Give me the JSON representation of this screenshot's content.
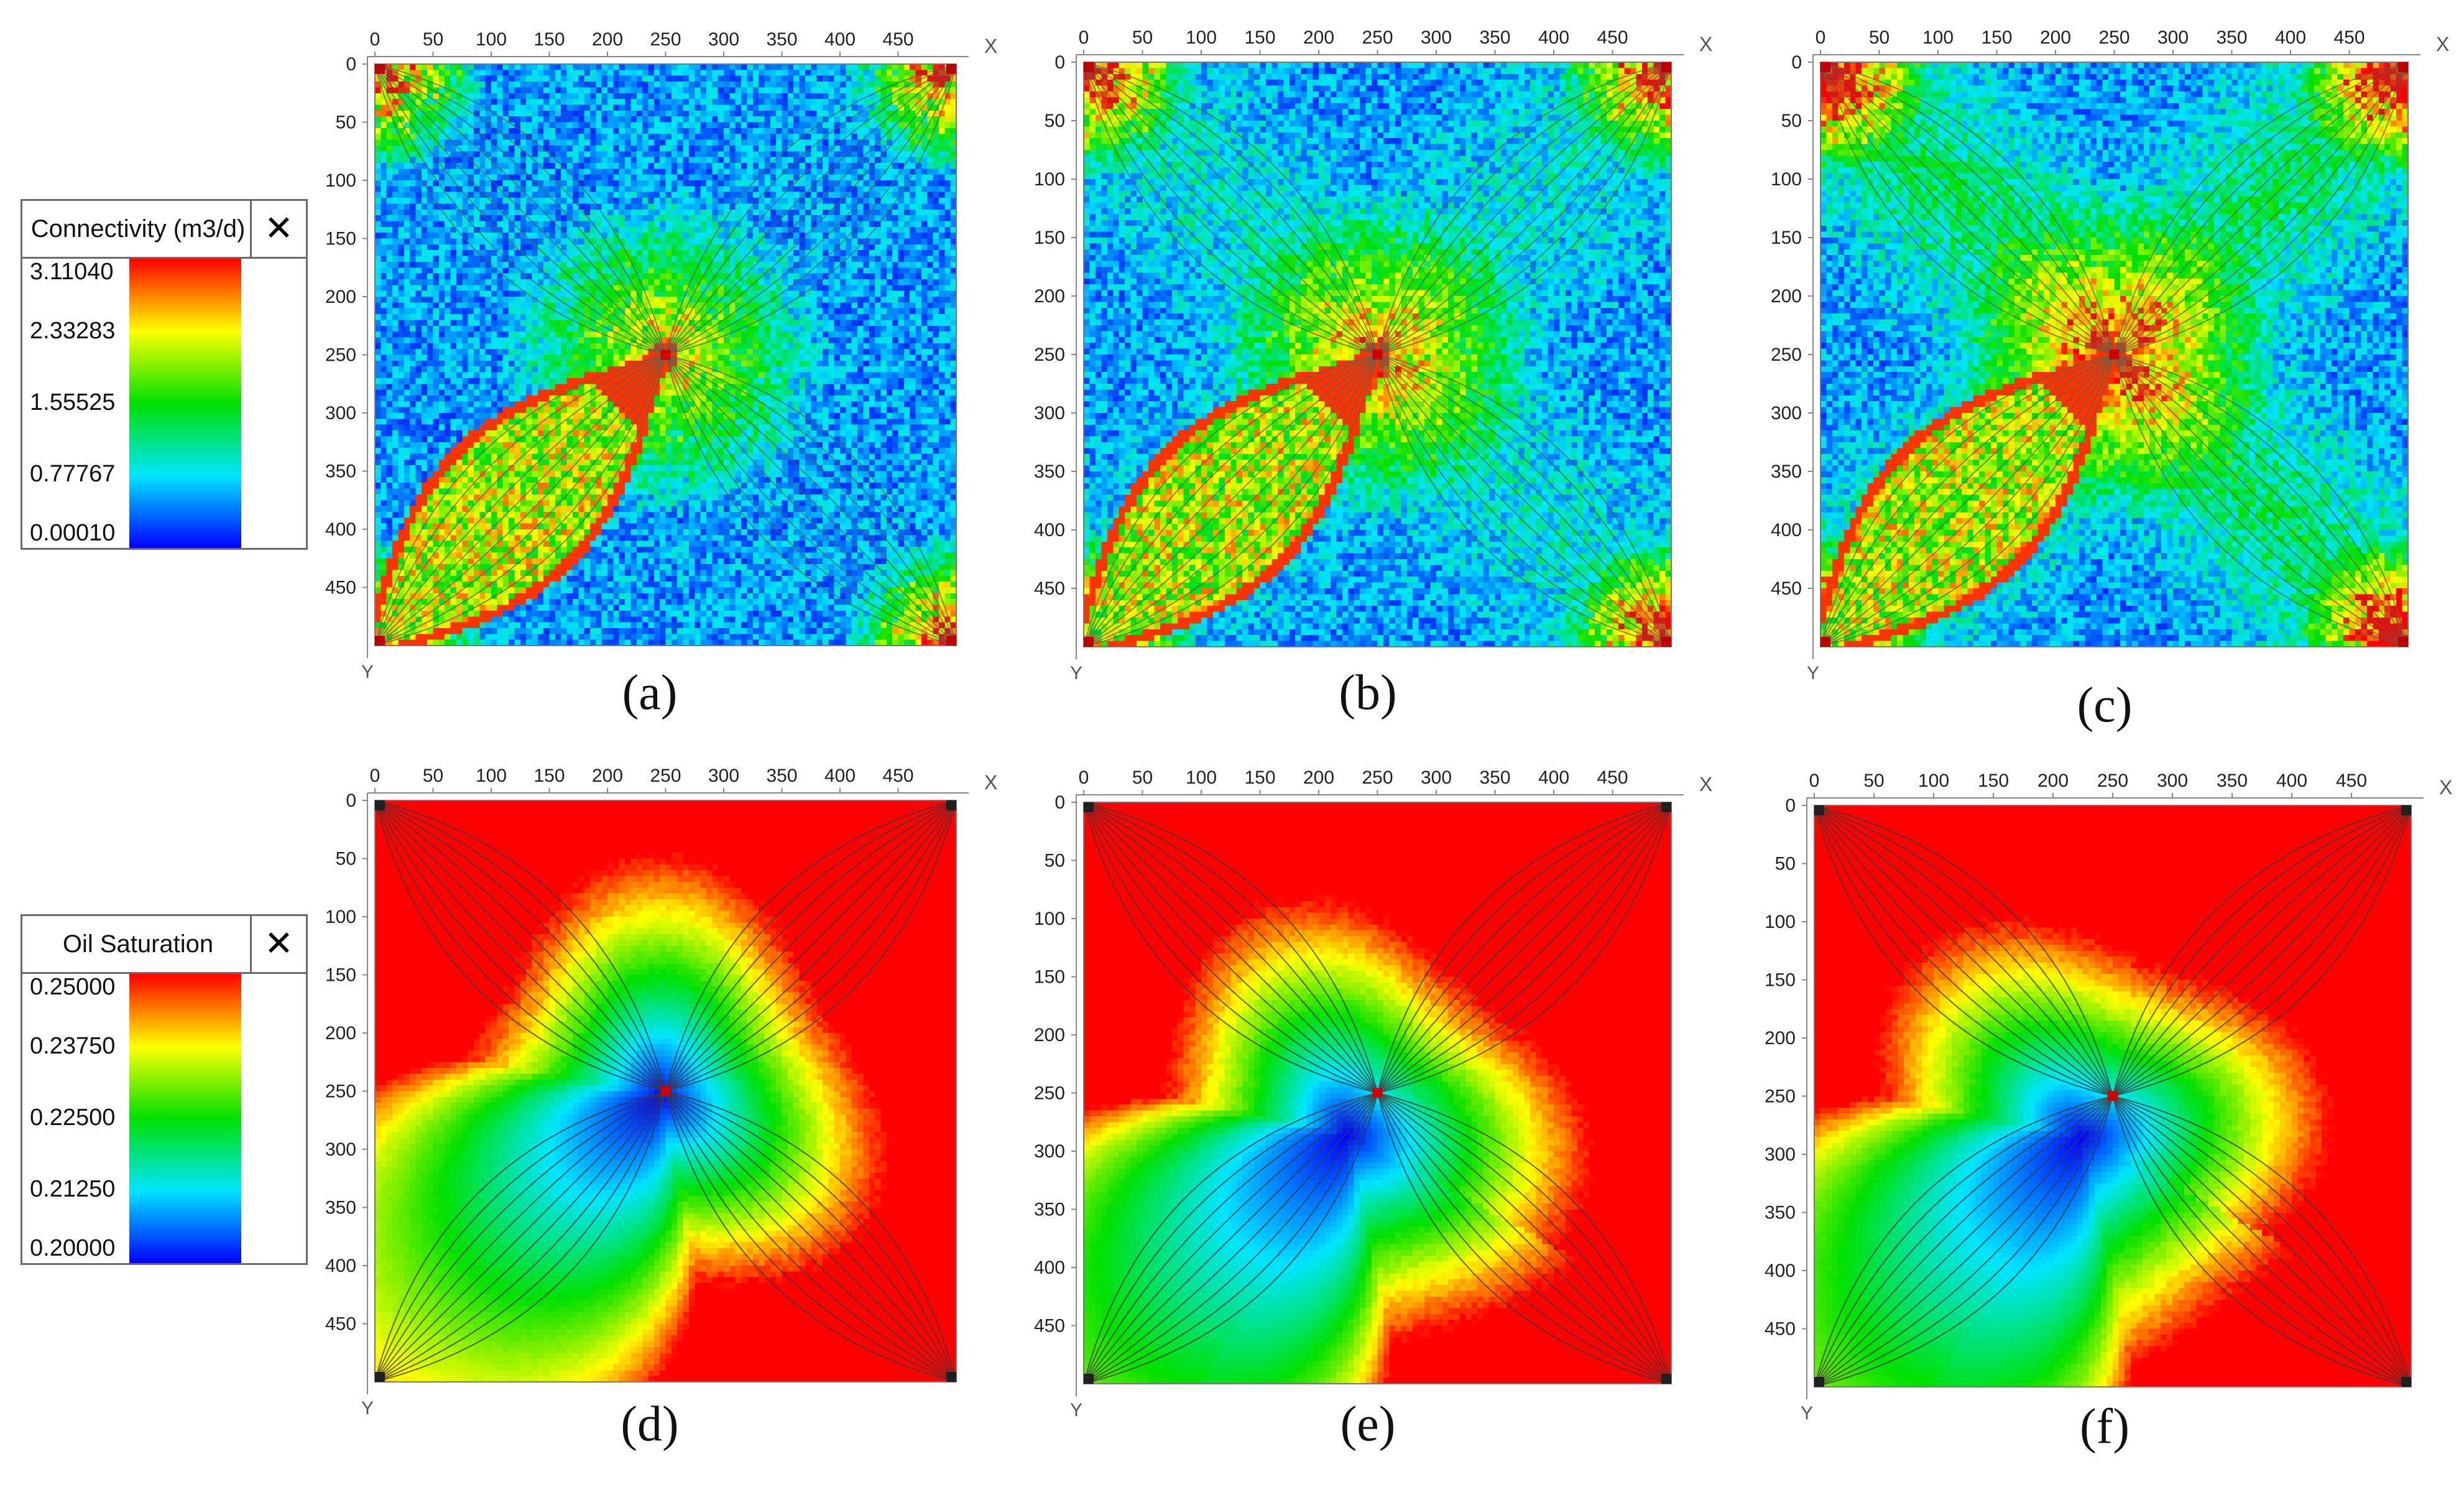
{
  "legends": [
    {
      "title": "Connectivity (m3/d)",
      "close_icon": "close-icon",
      "labels": [
        "3.11040",
        "2.33283",
        "1.55525",
        "0.77767",
        "0.00010"
      ]
    },
    {
      "title": "Oil Saturation",
      "close_icon": "close-icon",
      "labels": [
        "0.25000",
        "0.23750",
        "0.22500",
        "0.21250",
        "0.20000"
      ]
    }
  ],
  "colormap": [
    "#0000ff",
    "#00e5ff",
    "#00e000",
    "#ffff00",
    "#ff0000"
  ],
  "chart_data": [
    {
      "type": "heatmap",
      "caption": "(a)",
      "variable": "Connectivity (m3/d)",
      "x_axis_label": "X",
      "y_axis_label": "Y",
      "x_ticks": [
        "0",
        "50",
        "100",
        "150",
        "200",
        "250",
        "300",
        "350",
        "400",
        "450"
      ],
      "y_ticks": [
        "0",
        "50",
        "100",
        "150",
        "200",
        "250",
        "300",
        "350",
        "400",
        "450"
      ],
      "xlim": [
        0,
        500
      ],
      "ylim": [
        0,
        500
      ],
      "value_range": [
        0.0001,
        3.1104
      ],
      "wells": {
        "injector": [
          250,
          250
        ],
        "producers": [
          [
            0,
            0
          ],
          [
            500,
            0
          ],
          [
            0,
            500
          ],
          [
            500,
            500
          ]
        ]
      },
      "high_zone": {
        "from": [
          0,
          500
        ],
        "to": [
          250,
          250
        ]
      }
    },
    {
      "type": "heatmap",
      "caption": "(b)",
      "variable": "Connectivity (m3/d)",
      "x_axis_label": "X",
      "y_axis_label": "Y",
      "x_ticks": [
        "0",
        "50",
        "100",
        "150",
        "200",
        "250",
        "300",
        "350",
        "400",
        "450"
      ],
      "y_ticks": [
        "0",
        "50",
        "100",
        "150",
        "200",
        "250",
        "300",
        "350",
        "400",
        "450"
      ],
      "xlim": [
        0,
        500
      ],
      "ylim": [
        0,
        500
      ],
      "value_range": [
        0.0001,
        3.1104
      ],
      "wells": {
        "injector": [
          250,
          250
        ],
        "producers": [
          [
            0,
            0
          ],
          [
            500,
            0
          ],
          [
            0,
            500
          ],
          [
            500,
            500
          ]
        ]
      },
      "high_zone": {
        "from": [
          0,
          500
        ],
        "to": [
          250,
          250
        ]
      }
    },
    {
      "type": "heatmap",
      "caption": "(c)",
      "variable": "Connectivity (m3/d)",
      "x_axis_label": "X",
      "y_axis_label": "Y",
      "x_ticks": [
        "0",
        "50",
        "100",
        "150",
        "200",
        "250",
        "300",
        "350",
        "400",
        "450"
      ],
      "y_ticks": [
        "0",
        "50",
        "100",
        "150",
        "200",
        "250",
        "300",
        "350",
        "400",
        "450"
      ],
      "xlim": [
        0,
        500
      ],
      "ylim": [
        0,
        500
      ],
      "value_range": [
        0.0001,
        3.1104
      ],
      "wells": {
        "injector": [
          250,
          250
        ],
        "producers": [
          [
            0,
            0
          ],
          [
            500,
            0
          ],
          [
            0,
            500
          ],
          [
            500,
            500
          ]
        ]
      },
      "high_zone": {
        "from": [
          0,
          500
        ],
        "to": [
          250,
          250
        ]
      }
    },
    {
      "type": "heatmap",
      "caption": "(d)",
      "variable": "Oil Saturation",
      "x_axis_label": "X",
      "y_axis_label": "Y",
      "x_ticks": [
        "0",
        "50",
        "100",
        "150",
        "200",
        "250",
        "300",
        "350",
        "400",
        "450"
      ],
      "y_ticks": [
        "0",
        "50",
        "100",
        "150",
        "200",
        "250",
        "300",
        "350",
        "400",
        "450"
      ],
      "xlim": [
        0,
        500
      ],
      "ylim": [
        0,
        500
      ],
      "value_range": [
        0.2,
        0.25
      ],
      "wells": {
        "injector": [
          250,
          250
        ],
        "producers": [
          [
            0,
            0
          ],
          [
            500,
            0
          ],
          [
            0,
            500
          ],
          [
            500,
            500
          ]
        ]
      },
      "swept_zone_center": [
        250,
        250
      ]
    },
    {
      "type": "heatmap",
      "caption": "(e)",
      "variable": "Oil Saturation",
      "x_axis_label": "X",
      "y_axis_label": "Y",
      "x_ticks": [
        "0",
        "50",
        "100",
        "150",
        "200",
        "250",
        "300",
        "350",
        "400",
        "450"
      ],
      "y_ticks": [
        "0",
        "50",
        "100",
        "150",
        "200",
        "250",
        "300",
        "350",
        "400",
        "450"
      ],
      "xlim": [
        0,
        500
      ],
      "ylim": [
        0,
        500
      ],
      "value_range": [
        0.2,
        0.25
      ],
      "wells": {
        "injector": [
          250,
          250
        ],
        "producers": [
          [
            0,
            0
          ],
          [
            500,
            0
          ],
          [
            0,
            500
          ],
          [
            500,
            500
          ]
        ]
      },
      "swept_zone_center": [
        230,
        280
      ]
    },
    {
      "type": "heatmap",
      "caption": "(f)",
      "variable": "Oil Saturation",
      "x_axis_label": "X",
      "y_axis_label": "Y",
      "x_ticks": [
        "0",
        "50",
        "100",
        "150",
        "200",
        "250",
        "300",
        "350",
        "400",
        "450"
      ],
      "y_ticks": [
        "0",
        "50",
        "100",
        "150",
        "200",
        "250",
        "300",
        "350",
        "400",
        "450"
      ],
      "xlim": [
        0,
        500
      ],
      "ylim": [
        0,
        500
      ],
      "value_range": [
        0.2,
        0.25
      ],
      "wells": {
        "injector": [
          250,
          250
        ],
        "producers": [
          [
            0,
            0
          ],
          [
            500,
            0
          ],
          [
            0,
            500
          ],
          [
            500,
            500
          ]
        ]
      },
      "swept_zone_center": [
        230,
        280
      ]
    }
  ]
}
